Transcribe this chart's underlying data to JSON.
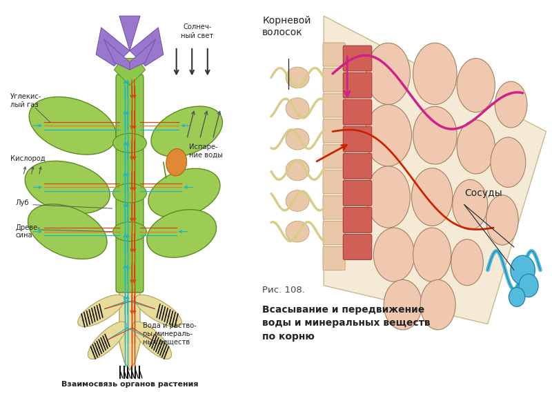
{
  "bg_color": "#ffffff",
  "left_panel": {
    "title": "Взаимосвязь органов растения",
    "arrow_color_blue": "#1ab5c8",
    "arrow_color_red": "#d94010",
    "arrow_color_orange": "#e08020",
    "stem_color": "#8cc84b",
    "stem_edge": "#5a8a20",
    "leaf_color": "#9dcc55",
    "leaf_edge": "#5a8a20",
    "flower_color": "#9977cc",
    "flower_edge": "#7755aa",
    "root_color": "#e8dc9a",
    "root_edge": "#b0a060",
    "fruit_color": "#e08833",
    "fruit_edge": "#b06611",
    "hair_color": "#111111"
  },
  "right_panel": {
    "label_volosok": "Корневой\nволосок",
    "label_sosudy": "Сосуды",
    "caption_num": "Рис. 108.",
    "caption_text": "Всасывание и передвижение\nводы и минеральных веществ\nпо корню",
    "bg_wedge": "#f5ead5",
    "bg_wedge_edge": "#c8b890",
    "cell_color": "#f0c8b0",
    "cell_edge": "#a08060",
    "epidermis_color": "#d06055",
    "epidermis_edge": "#a03030",
    "epidermis_small_color": "#e8c8a8",
    "epidermis_small_edge": "#c0a070",
    "vessel_color": "#55bbdd",
    "vessel_edge": "#2288aa",
    "hair_color": "#d8cc88",
    "hair_edge": "#a89840",
    "path_magenta": "#d0208a",
    "path_red": "#cc2200",
    "text_color": "#222222"
  }
}
